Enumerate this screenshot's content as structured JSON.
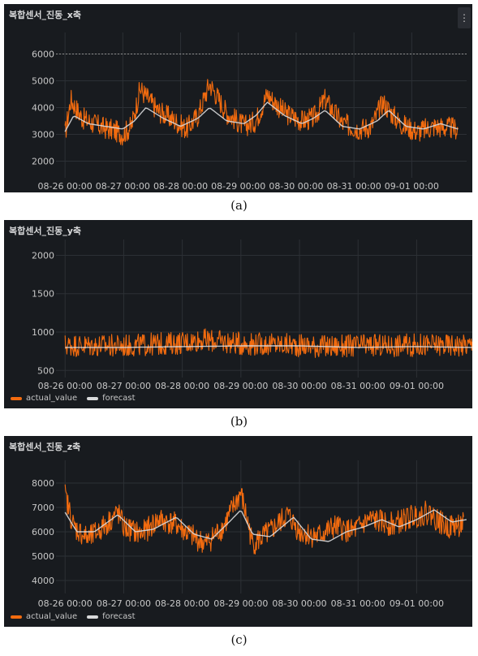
{
  "panels": [
    {
      "title": "복합센서_진동_x축",
      "caption": "(a)",
      "menu_icon": "kebab-menu-icon",
      "legend": [],
      "chart_data": {
        "type": "line",
        "x_ticks": [
          "08-26 00:00",
          "08-27 00:00",
          "08-28 00:00",
          "08-29 00:00",
          "08-30 00:00",
          "08-31 00:00",
          "09-01 00:00"
        ],
        "y_ticks": [
          2000,
          3000,
          4000,
          5000,
          6000
        ],
        "ylim": [
          1500,
          6500
        ],
        "xlim": [
          -0.1,
          6.95
        ],
        "threshold": 6000,
        "series": [
          {
            "role": "actual",
            "color": "#f26b0f",
            "noise": 420,
            "points": [
              [
                0,
                3000
              ],
              [
                0.1,
                4300
              ],
              [
                0.3,
                3600
              ],
              [
                0.6,
                3300
              ],
              [
                0.9,
                3100
              ],
              [
                1.0,
                3000
              ],
              [
                1.15,
                3300
              ],
              [
                1.3,
                4700
              ],
              [
                1.6,
                3900
              ],
              [
                1.9,
                3500
              ],
              [
                2.1,
                3200
              ],
              [
                2.3,
                3700
              ],
              [
                2.5,
                4900
              ],
              [
                2.8,
                3800
              ],
              [
                3.1,
                3300
              ],
              [
                3.3,
                3500
              ],
              [
                3.5,
                4500
              ],
              [
                3.8,
                3800
              ],
              [
                4.1,
                3500
              ],
              [
                4.3,
                3600
              ],
              [
                4.5,
                4300
              ],
              [
                4.8,
                3400
              ],
              [
                5.1,
                3200
              ],
              [
                5.3,
                3300
              ],
              [
                5.5,
                4200
              ],
              [
                5.8,
                3400
              ],
              [
                6.1,
                3100
              ],
              [
                6.4,
                3300
              ],
              [
                6.8,
                3200
              ]
            ]
          },
          {
            "role": "forecast",
            "color": "#d8d9da",
            "noise": 0,
            "points": [
              [
                0,
                3100
              ],
              [
                0.15,
                3700
              ],
              [
                0.4,
                3400
              ],
              [
                0.7,
                3300
              ],
              [
                1.0,
                3200
              ],
              [
                1.2,
                3500
              ],
              [
                1.4,
                4000
              ],
              [
                1.7,
                3600
              ],
              [
                2.0,
                3300
              ],
              [
                2.3,
                3600
              ],
              [
                2.5,
                4000
              ],
              [
                2.8,
                3500
              ],
              [
                3.1,
                3400
              ],
              [
                3.3,
                3700
              ],
              [
                3.5,
                4200
              ],
              [
                3.8,
                3700
              ],
              [
                4.1,
                3400
              ],
              [
                4.3,
                3600
              ],
              [
                4.5,
                3900
              ],
              [
                4.8,
                3300
              ],
              [
                5.1,
                3200
              ],
              [
                5.4,
                3500
              ],
              [
                5.6,
                3900
              ],
              [
                5.9,
                3300
              ],
              [
                6.2,
                3200
              ],
              [
                6.5,
                3400
              ],
              [
                6.8,
                3200
              ]
            ]
          }
        ]
      }
    },
    {
      "title": "복합센서_진동_y축",
      "caption": "(b)",
      "menu_icon": "",
      "legend": [
        {
          "label": "actual_value",
          "color": "#f26b0f"
        },
        {
          "label": "forecast",
          "color": "#d8d9da"
        }
      ],
      "chart_data": {
        "type": "line",
        "x_ticks": [
          "08-26 00:00",
          "08-27 00:00",
          "08-28 00:00",
          "08-29 00:00",
          "08-30 00:00",
          "08-31 00:00",
          "09-01 00:00"
        ],
        "y_ticks": [
          500,
          1000,
          1500,
          2000
        ],
        "ylim": [
          450,
          2100
        ],
        "xlim": [
          -0.1,
          6.95
        ],
        "threshold": null,
        "series": [
          {
            "role": "actual",
            "color": "#f26b0f",
            "noise": 150,
            "points": [
              [
                0,
                830
              ],
              [
                1,
                820
              ],
              [
                2,
                860
              ],
              [
                2.3,
                900
              ],
              [
                3,
                850
              ],
              [
                3.9,
                830
              ],
              [
                4.5,
                810
              ],
              [
                5,
                820
              ],
              [
                6,
                830
              ],
              [
                6.95,
                830
              ]
            ]
          },
          {
            "role": "forecast",
            "color": "#d8d9da",
            "noise": 0,
            "points": [
              [
                0,
                800
              ],
              [
                1,
                800
              ],
              [
                2,
                810
              ],
              [
                3,
                820
              ],
              [
                4,
                820
              ],
              [
                5,
                800
              ],
              [
                6,
                810
              ],
              [
                6.95,
                800
              ]
            ]
          }
        ]
      }
    },
    {
      "title": "복합센서_진동_z축",
      "caption": "(c)",
      "menu_icon": "",
      "legend": [
        {
          "label": "actual_value",
          "color": "#f26b0f"
        },
        {
          "label": "forecast",
          "color": "#d8d9da"
        }
      ],
      "chart_data": {
        "type": "line",
        "x_ticks": [
          "08-26 00:00",
          "08-27 00:00",
          "08-28 00:00",
          "08-29 00:00",
          "08-30 00:00",
          "08-31 00:00",
          "09-01 00:00"
        ],
        "y_ticks": [
          4000,
          5000,
          6000,
          7000,
          8000
        ],
        "ylim": [
          3600,
          8600
        ],
        "xlim": [
          -0.1,
          6.95
        ],
        "threshold": null,
        "series": [
          {
            "role": "actual",
            "color": "#f26b0f",
            "noise": 500,
            "points": [
              [
                0,
                7500
              ],
              [
                0.15,
                6200
              ],
              [
                0.4,
                5700
              ],
              [
                0.7,
                6300
              ],
              [
                0.9,
                6800
              ],
              [
                1.0,
                6200
              ],
              [
                1.3,
                5900
              ],
              [
                1.6,
                6500
              ],
              [
                1.9,
                6300
              ],
              [
                2.1,
                5900
              ],
              [
                2.4,
                5500
              ],
              [
                2.7,
                6200
              ],
              [
                3.0,
                7600
              ],
              [
                3.2,
                5500
              ],
              [
                3.5,
                6000
              ],
              [
                3.8,
                6700
              ],
              [
                4.0,
                6000
              ],
              [
                4.3,
                5800
              ],
              [
                4.6,
                6200
              ],
              [
                4.9,
                6000
              ],
              [
                5.2,
                6500
              ],
              [
                5.6,
                6300
              ],
              [
                5.9,
                6600
              ],
              [
                6.2,
                6800
              ],
              [
                6.5,
                6200
              ],
              [
                6.8,
                6300
              ]
            ]
          },
          {
            "role": "forecast",
            "color": "#d8d9da",
            "noise": 0,
            "points": [
              [
                0,
                6800
              ],
              [
                0.2,
                6000
              ],
              [
                0.5,
                6000
              ],
              [
                0.9,
                6700
              ],
              [
                1.2,
                6000
              ],
              [
                1.5,
                6100
              ],
              [
                1.9,
                6600
              ],
              [
                2.2,
                5900
              ],
              [
                2.5,
                5700
              ],
              [
                2.8,
                6400
              ],
              [
                3.0,
                6900
              ],
              [
                3.2,
                5900
              ],
              [
                3.5,
                5800
              ],
              [
                3.9,
                6600
              ],
              [
                4.2,
                5700
              ],
              [
                4.5,
                5600
              ],
              [
                4.8,
                6000
              ],
              [
                5.1,
                6200
              ],
              [
                5.4,
                6500
              ],
              [
                5.7,
                6200
              ],
              [
                6.0,
                6500
              ],
              [
                6.3,
                6900
              ],
              [
                6.6,
                6400
              ],
              [
                6.85,
                6500
              ]
            ]
          }
        ]
      }
    }
  ]
}
